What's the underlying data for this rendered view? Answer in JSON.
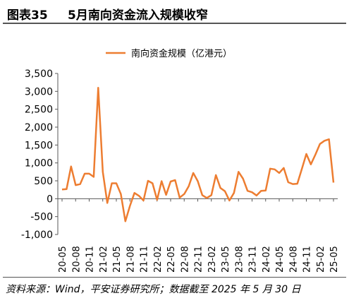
{
  "figure": {
    "number": "图表35",
    "title": "5月南向资金流入规模收窄",
    "source": "资料来源：Wind，平安证券研究所；数据截至 2025 年 5 月 30 日"
  },
  "colors": {
    "line": "#ED7D31",
    "axis": "#595959",
    "text": "#000000"
  },
  "chart_data": {
    "type": "line",
    "legend_position": "top-center",
    "grid": false,
    "ylim": [
      -1000,
      3500
    ],
    "yticks": [
      -1000,
      -500,
      0,
      500,
      1000,
      1500,
      2000,
      2500,
      3000,
      3500
    ],
    "ytick_labels": [
      "-1,000",
      "-500",
      "0",
      "500",
      "1,000",
      "1,500",
      "2,000",
      "2,500",
      "3,000",
      "3,500"
    ],
    "xtick_labels": [
      "20-05",
      "20-08",
      "20-11",
      "21-02",
      "21-05",
      "21-08",
      "21-11",
      "22-02",
      "22-05",
      "22-08",
      "22-11",
      "23-02",
      "23-05",
      "23-08",
      "23-11",
      "24-02",
      "24-05",
      "24-08",
      "24-11",
      "25-02",
      "25-05"
    ],
    "x": [
      "20-05",
      "20-06",
      "20-07",
      "20-08",
      "20-09",
      "20-10",
      "20-11",
      "20-12",
      "21-01",
      "21-02",
      "21-03",
      "21-04",
      "21-05",
      "21-06",
      "21-07",
      "21-08",
      "21-09",
      "21-10",
      "21-11",
      "21-12",
      "22-01",
      "22-02",
      "22-03",
      "22-04",
      "22-05",
      "22-06",
      "22-07",
      "22-08",
      "22-09",
      "22-10",
      "22-11",
      "22-12",
      "23-01",
      "23-02",
      "23-03",
      "23-04",
      "23-05",
      "23-06",
      "23-07",
      "23-08",
      "23-09",
      "23-10",
      "23-11",
      "23-12",
      "24-01",
      "24-02",
      "24-03",
      "24-04",
      "24-05",
      "24-06",
      "24-07",
      "24-08",
      "24-09",
      "24-10",
      "24-11",
      "24-12",
      "25-01",
      "25-02",
      "25-03",
      "25-04",
      "25-05"
    ],
    "series": [
      {
        "name": "南向资金规模（亿港元）",
        "values": [
          260,
          270,
          900,
          380,
          410,
          700,
          700,
          610,
          3100,
          750,
          -120,
          430,
          430,
          130,
          -630,
          -200,
          160,
          80,
          -50,
          500,
          430,
          -30,
          490,
          110,
          480,
          520,
          30,
          130,
          350,
          720,
          490,
          100,
          20,
          100,
          660,
          300,
          210,
          -50,
          160,
          750,
          560,
          220,
          180,
          90,
          220,
          230,
          840,
          820,
          720,
          860,
          460,
          410,
          420,
          830,
          1250,
          960,
          1230,
          1530,
          1620,
          1660,
          450
        ]
      }
    ]
  }
}
